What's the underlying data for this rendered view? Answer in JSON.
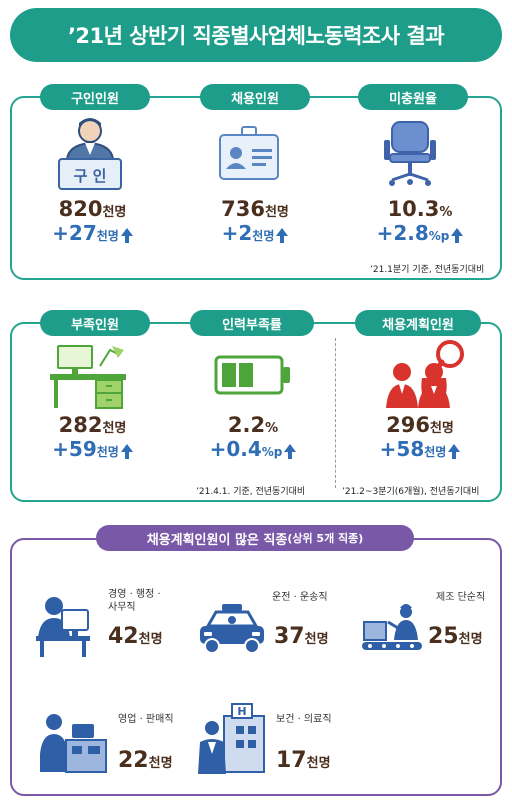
{
  "title": "’21년 상반기 직종별사업체노동력조사 결과",
  "section1": {
    "items": [
      {
        "label": "구인인원",
        "icon_text": "구 인",
        "value": "820",
        "unit": "천명",
        "change": "+27",
        "change_unit": "천명"
      },
      {
        "label": "채용인원",
        "value": "736",
        "unit": "천명",
        "change": "+2",
        "change_unit": "천명"
      },
      {
        "label": "미충원율",
        "value": "10.3",
        "unit": "%",
        "change": "+2.8",
        "change_unit": "%p"
      }
    ],
    "note": "’21.1분기 기준, 전년동기대비"
  },
  "section2": {
    "items": [
      {
        "label": "부족인원",
        "value": "282",
        "unit": "천명",
        "change": "+59",
        "change_unit": "천명"
      },
      {
        "label": "인력부족률",
        "value": "2.2",
        "unit": "%",
        "change": "+0.4",
        "change_unit": "%p"
      },
      {
        "label": "채용계획인원",
        "value": "296",
        "unit": "천명",
        "change": "+58",
        "change_unit": "천명"
      }
    ],
    "note_left": "’21.4.1. 기준, 전년동기대비",
    "note_right": "’21.2~3분기(6개월), 전년동기대비"
  },
  "section3": {
    "title": "채용계획인원이 많은 직종",
    "title_sub": "(상위 5개 직종)",
    "jobs": [
      {
        "label_1": "경영 · 행정 ·",
        "label_2": "사무직",
        "value": "42",
        "unit": "천명"
      },
      {
        "label_1": "운전 · 운송직",
        "value": "37",
        "unit": "천명"
      },
      {
        "label_1": "제조 단순직",
        "value": "25",
        "unit": "천명"
      },
      {
        "label_1": "영업 · 판매직",
        "value": "22",
        "unit": "천명"
      },
      {
        "label_1": "보건 · 의료직",
        "value": "17",
        "unit": "천명"
      }
    ]
  },
  "colors": {
    "teal": "#1e9e8a",
    "purple": "#7a58a8",
    "brown": "#4a2f1e",
    "blue": "#2f6db5"
  }
}
